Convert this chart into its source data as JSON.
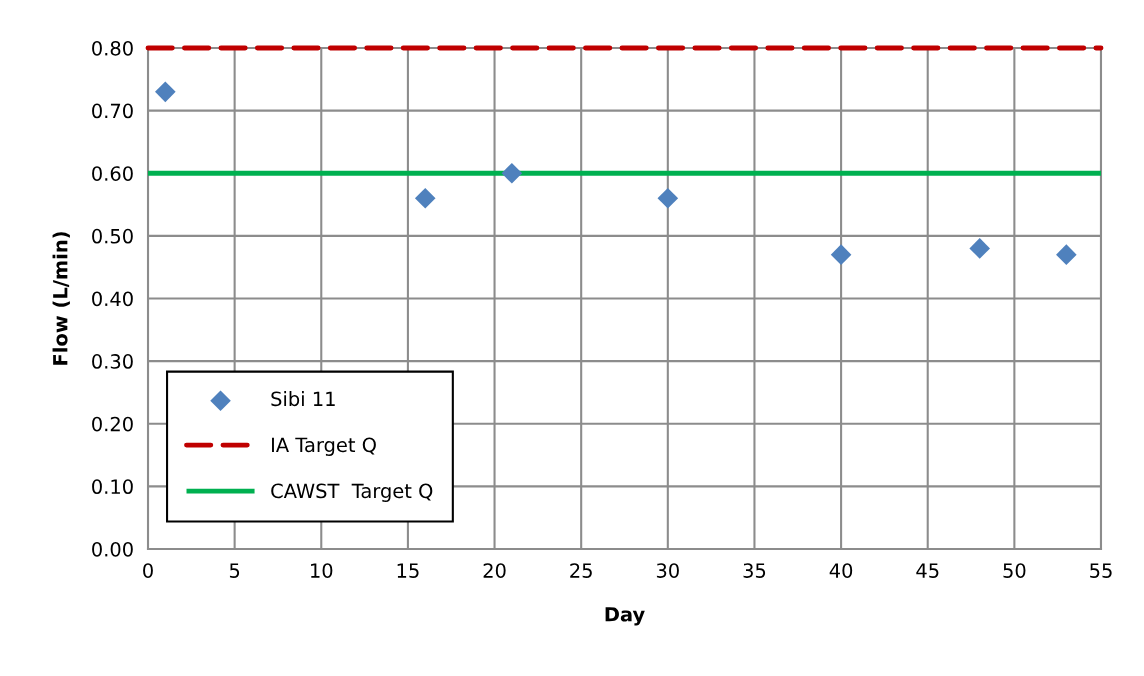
{
  "chart_data": {
    "type": "scatter",
    "xlabel": "Day",
    "ylabel": "Flow (L/min)",
    "series": [
      {
        "name": "Sibi 11",
        "color": "#4f81bd",
        "marker": "diamond",
        "x": [
          1,
          16,
          21,
          30,
          40,
          48,
          53
        ],
        "values": [
          0.73,
          0.56,
          0.6,
          0.56,
          0.47,
          0.48,
          0.47
        ]
      },
      {
        "name": "IA Target Q",
        "type": "line",
        "color": "#c00000",
        "line_style": "dashed",
        "marker": "none",
        "x": [
          0,
          55
        ],
        "values": [
          0.8,
          0.8
        ]
      },
      {
        "name": "CAWST  Target Q",
        "type": "line",
        "color": "#00b050",
        "line_style": "solid",
        "marker": "none",
        "x": [
          0,
          55
        ],
        "values": [
          0.6,
          0.6
        ]
      }
    ],
    "xlim": [
      0,
      55
    ],
    "xticks": [
      0,
      5,
      10,
      15,
      20,
      25,
      30,
      35,
      40,
      45,
      50,
      55
    ],
    "ylim": [
      0,
      0.8
    ],
    "yticks": [
      {
        "value": 0,
        "label": "0.00"
      },
      {
        "value": 0.1,
        "label": "0.10"
      },
      {
        "value": 0.2,
        "label": "0.20"
      },
      {
        "value": 0.3,
        "label": "0.30"
      },
      {
        "value": 0.4,
        "label": "0.40"
      },
      {
        "value": 0.5,
        "label": "0.50"
      },
      {
        "value": 0.6,
        "label": "0.60"
      },
      {
        "value": 0.7,
        "label": "0.70"
      },
      {
        "value": 0.8,
        "label": "0.80"
      }
    ],
    "grid": true,
    "legend": "bottom left"
  }
}
